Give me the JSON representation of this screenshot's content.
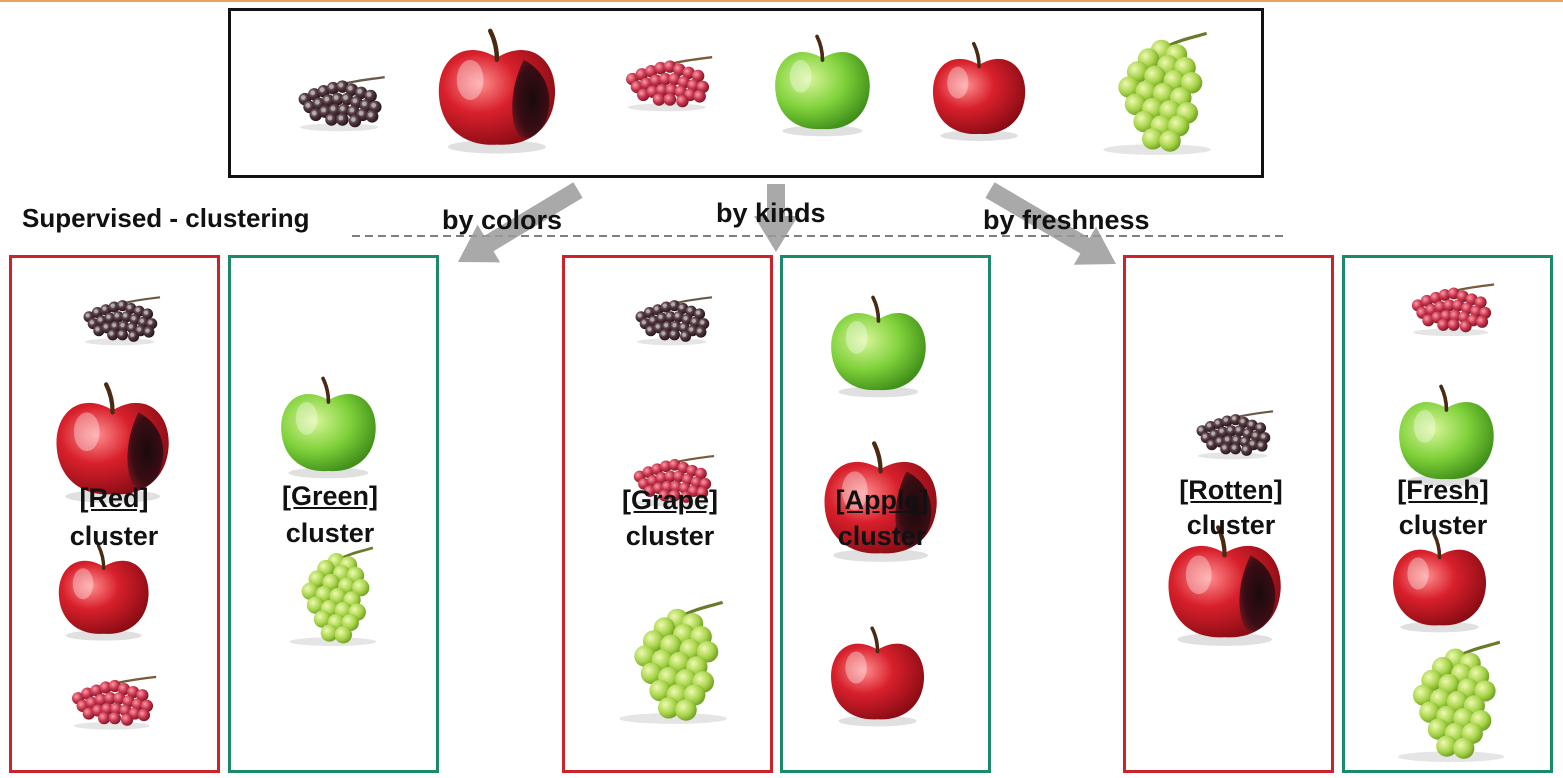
{
  "heading": "Supervised - clustering",
  "methods": {
    "colors": "by colors",
    "kinds": "by kinds",
    "freshness": "by freshness"
  },
  "cluster_word": "cluster",
  "colors": {
    "red_box": "#cc2229",
    "green_box": "#1a8a6a",
    "source_box": "#111111",
    "arrow": "#9a9a9a"
  },
  "source_row": [
    {
      "icon": "rotten-grapes-icon"
    },
    {
      "icon": "rotten-apple-icon"
    },
    {
      "icon": "red-grapes-icon"
    },
    {
      "icon": "green-apple-icon"
    },
    {
      "icon": "red-apple-icon"
    },
    {
      "icon": "green-grapes-icon"
    }
  ],
  "clusters": [
    {
      "name": "[Red]",
      "border": "red",
      "items": [
        "rotten-grapes-icon",
        "rotten-apple-icon",
        "red-apple-icon",
        "red-grapes-icon"
      ]
    },
    {
      "name": "[Green]",
      "border": "green",
      "items": [
        "green-apple-icon",
        "green-grapes-icon"
      ]
    },
    {
      "name": "[Grape]",
      "border": "red",
      "items": [
        "rotten-grapes-icon",
        "red-grapes-icon",
        "green-grapes-icon"
      ]
    },
    {
      "name": "[Apple]",
      "border": "green",
      "items": [
        "green-apple-icon",
        "rotten-apple-icon",
        "red-apple-icon"
      ]
    },
    {
      "name": "[Rotten]",
      "border": "red",
      "items": [
        "rotten-grapes-icon",
        "rotten-apple-icon"
      ]
    },
    {
      "name": "[Fresh]",
      "border": "green",
      "items": [
        "red-grapes-icon",
        "green-apple-icon",
        "red-apple-icon",
        "green-grapes-icon"
      ]
    }
  ]
}
